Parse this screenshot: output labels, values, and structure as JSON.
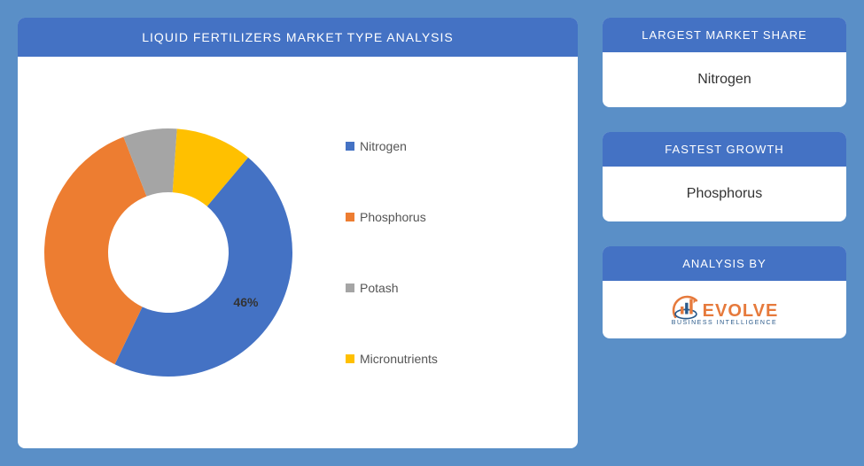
{
  "chart": {
    "type": "donut",
    "title": "LIQUID FERTILIZERS MARKET TYPE ANALYSIS",
    "title_bg": "#4472c4",
    "title_color": "#ffffff",
    "panel_bg": "#ffffff",
    "page_bg": "#5a8fc7",
    "slices": [
      {
        "label": "Nitrogen",
        "value": 46,
        "color": "#4472c4",
        "show_label": "46%"
      },
      {
        "label": "Phosphorus",
        "value": 37,
        "color": "#ed7d31",
        "show_label": ""
      },
      {
        "label": "Potash",
        "value": 7,
        "color": "#a5a5a5",
        "show_label": ""
      },
      {
        "label": "Micronutrients",
        "value": 10,
        "color": "#ffc000",
        "show_label": ""
      }
    ],
    "legend_items": [
      {
        "label": "Nitrogen",
        "color": "#4472c4"
      },
      {
        "label": "Phosphorus",
        "color": "#ed7d31"
      },
      {
        "label": "Potash",
        "color": "#a5a5a5"
      },
      {
        "label": "Micronutrients",
        "color": "#ffc000"
      }
    ],
    "donut_outer_radius": 140,
    "donut_inner_radius": 68,
    "start_angle_deg": -50
  },
  "cards": {
    "share": {
      "header": "LARGEST MARKET SHARE",
      "value": "Nitrogen"
    },
    "growth": {
      "header": "FASTEST GROWTH",
      "value": "Phosphorus"
    },
    "by": {
      "header": "ANALYSIS BY",
      "logo_text": "EVOLVE",
      "logo_sub": "BUSINESS INTELLIGENCE"
    }
  },
  "card_header_bg": "#4472c4",
  "card_header_color": "#ffffff",
  "logo_color": "#e67a3c",
  "logo_sub_color": "#2a5a8a"
}
